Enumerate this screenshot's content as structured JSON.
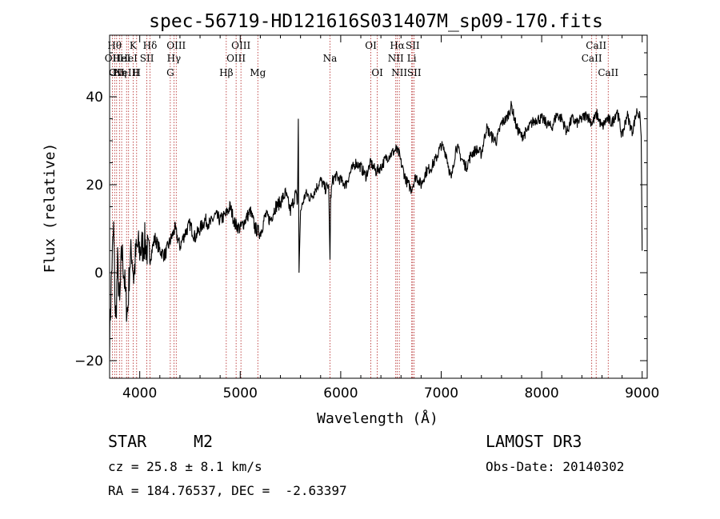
{
  "chart_data": {
    "type": "line",
    "title": "spec-56719-HD121616S031407M_sp09-170.fits",
    "xlabel": "Wavelength (Å)",
    "ylabel": "Flux (relative)",
    "xlim": [
      3700,
      9050
    ],
    "ylim": [
      -24,
      54
    ],
    "xticks": [
      4000,
      5000,
      6000,
      7000,
      8000,
      9000
    ],
    "yticks": [
      -20,
      0,
      20,
      40
    ],
    "series": [
      {
        "x": [
          3700,
          3720,
          3740,
          3760,
          3780,
          3800,
          3820,
          3840,
          3860,
          3880,
          3900,
          3920,
          3940,
          3960,
          3980,
          4000,
          4050,
          4100,
          4150,
          4200,
          4250,
          4300,
          4350,
          4400,
          4450,
          4500,
          4550,
          4600,
          4650,
          4700,
          4750,
          4800,
          4850,
          4900,
          4950,
          5000,
          5050,
          5100,
          5150,
          5200,
          5250,
          5300,
          5350,
          5400,
          5450,
          5500,
          5550,
          5570,
          5578,
          5585,
          5600,
          5650,
          5700,
          5750,
          5800,
          5850,
          5880,
          5893,
          5900,
          5920,
          5950,
          6000,
          6050,
          6100,
          6150,
          6200,
          6250,
          6300,
          6350,
          6400,
          6450,
          6500,
          6550,
          6580,
          6600,
          6650,
          6700,
          6750,
          6800,
          6850,
          6900,
          6950,
          7000,
          7050,
          7100,
          7150,
          7200,
          7250,
          7300,
          7350,
          7400,
          7450,
          7500,
          7550,
          7600,
          7650,
          7700,
          7750,
          7800,
          7850,
          7900,
          7950,
          8000,
          8050,
          8100,
          8150,
          8200,
          8250,
          8300,
          8350,
          8400,
          8450,
          8500,
          8550,
          8600,
          8650,
          8700,
          8750,
          8800,
          8850,
          8900,
          8950,
          8980,
          8990,
          9000
        ],
        "y": [
          -15,
          0,
          10,
          -12,
          2,
          -8,
          5,
          1,
          -6,
          -9,
          2,
          5,
          -1,
          4,
          6,
          5,
          7,
          3,
          8,
          5,
          4,
          7,
          10,
          6,
          9,
          11,
          8,
          10,
          12,
          11,
          13,
          12,
          13,
          15,
          11,
          10,
          12,
          14,
          10,
          9,
          13,
          12,
          15,
          16,
          18,
          14,
          18,
          16,
          35,
          0,
          14,
          18,
          17,
          19,
          21,
          19,
          20,
          3,
          17,
          21,
          22,
          21,
          20,
          23,
          25,
          24,
          22,
          25,
          23,
          24,
          26,
          27,
          28,
          27,
          25,
          21,
          19,
          22,
          20,
          23,
          24,
          26,
          29,
          27,
          21,
          29,
          26,
          24,
          27,
          28,
          27,
          33,
          31,
          30,
          34,
          35,
          38,
          33,
          31,
          32,
          34,
          35,
          35,
          34,
          33,
          36,
          35,
          32,
          35,
          34,
          35,
          36,
          34,
          36,
          33,
          35,
          34,
          37,
          31,
          36,
          32,
          37,
          35,
          31,
          5
        ]
      }
    ],
    "lines": [
      {
        "wavelength": 3727,
        "label": "OII",
        "row": 2
      },
      {
        "wavelength": 3750,
        "label": "Hθ",
        "row": 1
      },
      {
        "wavelength": 3770,
        "label": "OII",
        "row": 3
      },
      {
        "wavelength": 3798,
        "label": "Hη",
        "row": 3
      },
      {
        "wavelength": 3820,
        "label": "HeI",
        "row": 2
      },
      {
        "wavelength": 3869,
        "label": "NeIII",
        "row": 3
      },
      {
        "wavelength": 3889,
        "label": "HeI",
        "row": 2
      },
      {
        "wavelength": 3934,
        "label": "K",
        "row": 1
      },
      {
        "wavelength": 3969,
        "label": "H",
        "row": 3
      },
      {
        "wavelength": 4071,
        "label": "SII",
        "row": 2
      },
      {
        "wavelength": 4102,
        "label": "Hδ",
        "row": 1
      },
      {
        "wavelength": 4304,
        "label": "G",
        "row": 3
      },
      {
        "wavelength": 4340,
        "label": "Hγ",
        "row": 2
      },
      {
        "wavelength": 4363,
        "label": "OIII",
        "row": 1
      },
      {
        "wavelength": 4861,
        "label": "Hβ",
        "row": 3
      },
      {
        "wavelength": 4959,
        "label": "OIII",
        "row": 2
      },
      {
        "wavelength": 5007,
        "label": "OIII",
        "row": 1
      },
      {
        "wavelength": 5175,
        "label": "Mg",
        "row": 3
      },
      {
        "wavelength": 5893,
        "label": "Na",
        "row": 2
      },
      {
        "wavelength": 6300,
        "label": "OI",
        "row": 1
      },
      {
        "wavelength": 6364,
        "label": "OI",
        "row": 3
      },
      {
        "wavelength": 6548,
        "label": "NII",
        "row": 2
      },
      {
        "wavelength": 6563,
        "label": "Hα",
        "row": 1
      },
      {
        "wavelength": 6583,
        "label": "NII",
        "row": 3
      },
      {
        "wavelength": 6707,
        "label": "Li",
        "row": 2
      },
      {
        "wavelength": 6716,
        "label": "SII",
        "row": 1
      },
      {
        "wavelength": 6731,
        "label": "SII",
        "row": 3
      },
      {
        "wavelength": 8498,
        "label": "CaII",
        "row": 2
      },
      {
        "wavelength": 8542,
        "label": "CaII",
        "row": 1
      },
      {
        "wavelength": 8662,
        "label": "CaII",
        "row": 3
      }
    ],
    "colors": {
      "spectrum": "#000000",
      "line_marker": "#b22222"
    }
  },
  "info": {
    "object_class": "STAR",
    "subclass": "M2",
    "survey": "LAMOST DR3",
    "redshift_text": "cz = 25.8 ± 8.1 km/s",
    "obs_date_text": "Obs-Date: 20140302",
    "coords_text": "RA = 184.76537, DEC =  -2.63397"
  }
}
